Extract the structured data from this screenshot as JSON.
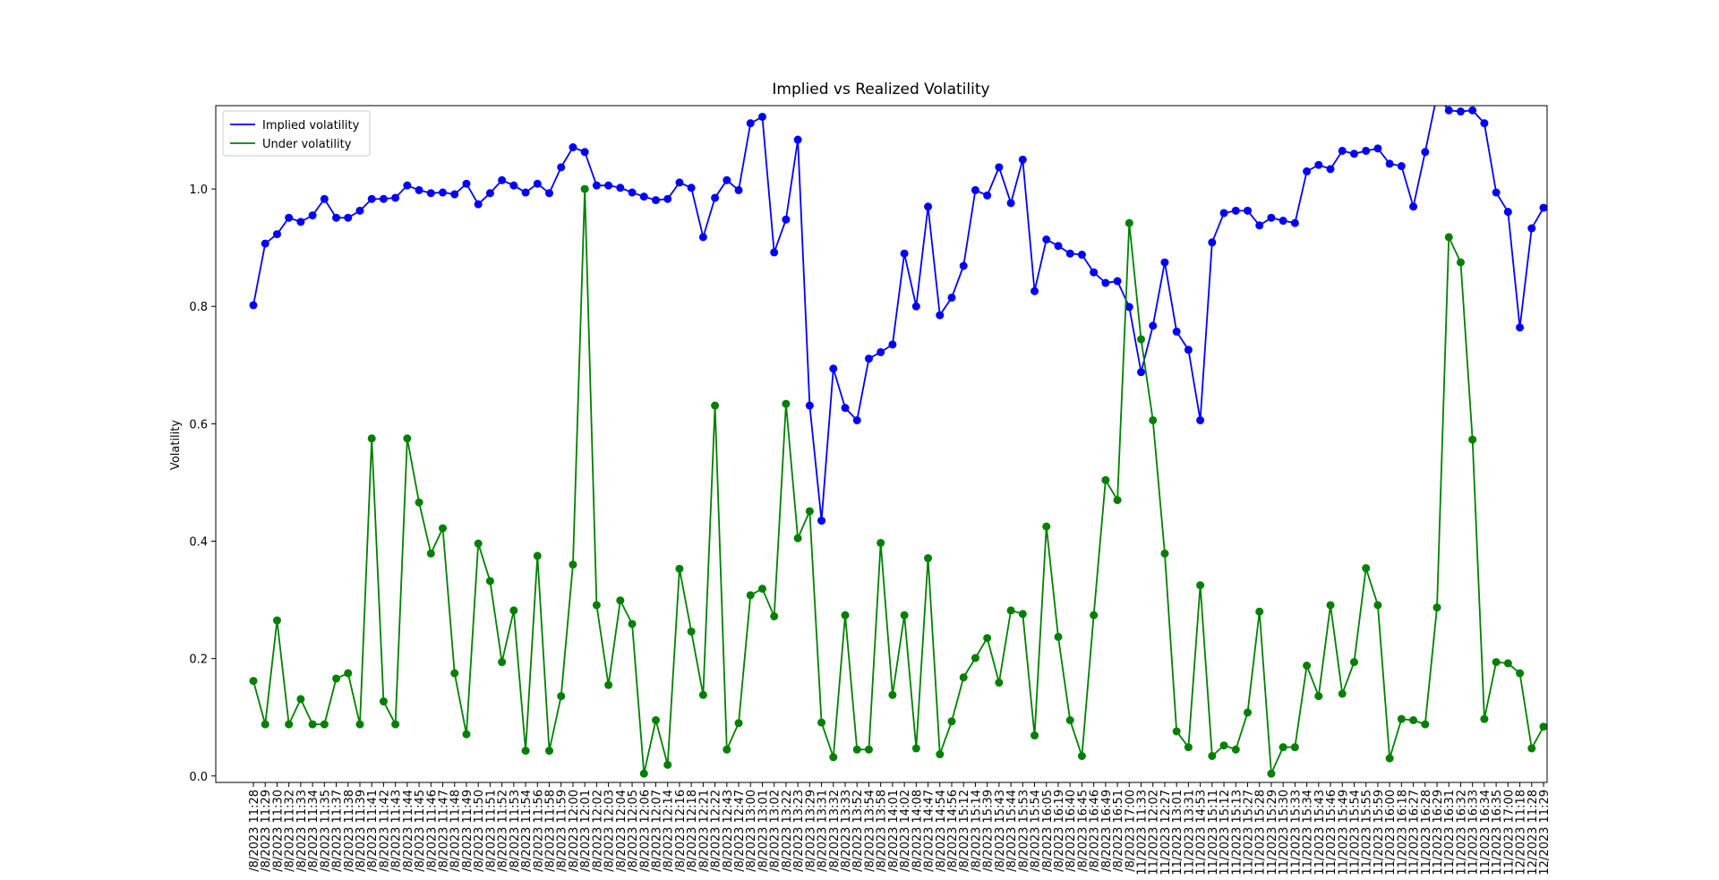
{
  "chart_data": {
    "type": "line",
    "title": "Implied vs Realized Volatility",
    "ylabel": "Volatility",
    "ylim": [
      -0.011,
      1.142
    ],
    "yticks": [
      {
        "value": 0,
        "label": "0.0"
      },
      0.2,
      0.4,
      0.6,
      0.8,
      {
        "value": 1,
        "label": "1.0"
      }
    ],
    "legend": "upper left",
    "markers": true,
    "categories": [
      "/8/2023 11:28",
      "/8/2023 11:29",
      "/8/2023 11:30",
      "/8/2023 11:32",
      "/8/2023 11:33",
      "/8/2023 11:34",
      "/8/2023 11:35",
      "/8/2023 11:37",
      "/8/2023 11:38",
      "/8/2023 11:39",
      "/8/2023 11:41",
      "/8/2023 11:42",
      "/8/2023 11:43",
      "/8/2023 11:44",
      "/8/2023 11:45",
      "/8/2023 11:46",
      "/8/2023 11:47",
      "/8/2023 11:48",
      "/8/2023 11:49",
      "/8/2023 11:50",
      "/8/2023 11:51",
      "/8/2023 11:52",
      "/8/2023 11:53",
      "/8/2023 11:54",
      "/8/2023 11:56",
      "/8/2023 11:58",
      "/8/2023 11:59",
      "/8/2023 12:00",
      "/8/2023 12:01",
      "/8/2023 12:02",
      "/8/2023 12:03",
      "/8/2023 12:04",
      "/8/2023 12:05",
      "/8/2023 12:06",
      "/8/2023 12:07",
      "/8/2023 12:14",
      "/8/2023 12:16",
      "/8/2023 12:18",
      "/8/2023 12:21",
      "/8/2023 12:22",
      "/8/2023 12:43",
      "/8/2023 12:47",
      "/8/2023 13:00",
      "/8/2023 13:01",
      "/8/2023 13:02",
      "/8/2023 13:22",
      "/8/2023 13:23",
      "/8/2023 13:29",
      "/8/2023 13:31",
      "/8/2023 13:32",
      "/8/2023 13:33",
      "/8/2023 13:52",
      "/8/2023 13:54",
      "/8/2023 13:58",
      "/8/2023 14:01",
      "/8/2023 14:02",
      "/8/2023 14:08",
      "/8/2023 14:47",
      "/8/2023 14:54",
      "/8/2023 14:56",
      "/8/2023 15:12",
      "/8/2023 15:14",
      "/8/2023 15:39",
      "/8/2023 15:43",
      "/8/2023 15:44",
      "/8/2023 15:53",
      "/8/2023 15:54",
      "/8/2023 16:05",
      "/8/2023 16:19",
      "/8/2023 16:40",
      "/8/2023 16:45",
      "/8/2023 16:46",
      "/8/2023 16:49",
      "/8/2023 16:51",
      "/8/2023 17:00",
      "11/2023 11:33",
      "11/2023 12:02",
      "11/2023 12:27",
      "11/2023 13:01",
      "11/2023 13:31",
      "11/2023 14:53",
      "11/2023 15:11",
      "11/2023 15:12",
      "11/2023 15:13",
      "11/2023 15:27",
      "11/2023 15:28",
      "11/2023 15:29",
      "11/2023 15:30",
      "11/2023 15:33",
      "11/2023 15:34",
      "11/2023 15:43",
      "11/2023 15:46",
      "11/2023 15:49",
      "11/2023 15:54",
      "11/2023 15:55",
      "11/2023 15:59",
      "11/2023 16:00",
      "11/2023 16:18",
      "11/2023 16:27",
      "11/2023 16:28",
      "11/2023 16:29",
      "11/2023 16:31",
      "11/2023 16:32",
      "11/2023 16:33",
      "11/2023 16:34",
      "11/2023 16:35",
      "11/2023 17:00",
      "12/2023 11:18",
      "12/2023 11:28",
      "12/2023 11:29"
    ],
    "series": [
      {
        "name": "Implied volatility",
        "color": "blue",
        "values": [
          0.802,
          0.907,
          0.923,
          0.951,
          0.944,
          0.955,
          0.983,
          0.951,
          0.951,
          0.963,
          0.983,
          0.983,
          0.985,
          1.006,
          0.998,
          0.993,
          0.994,
          0.991,
          1.009,
          0.974,
          0.993,
          1.015,
          1.006,
          0.994,
          1.009,
          0.993,
          1.037,
          1.071,
          1.063,
          1.006,
          1.006,
          1.002,
          0.994,
          0.987,
          0.981,
          0.983,
          1.011,
          1.002,
          0.918,
          0.985,
          1.015,
          0.998,
          1.112,
          1.123,
          0.892,
          0.948,
          1.084,
          0.631,
          0.435,
          0.694,
          0.627,
          0.606,
          0.711,
          0.722,
          0.735,
          0.89,
          0.8,
          0.97,
          0.785,
          0.815,
          0.869,
          0.998,
          0.989,
          1.037,
          0.976,
          1.05,
          0.826,
          0.914,
          0.903,
          0.89,
          0.888,
          0.858,
          0.84,
          0.843,
          0.799,
          0.688,
          0.767,
          0.875,
          0.757,
          0.726,
          0.606,
          0.909,
          0.959,
          0.963,
          0.963,
          0.938,
          0.951,
          0.946,
          0.942,
          1.03,
          1.041,
          1.034,
          1.065,
          1.06,
          1.065,
          1.069,
          1.043,
          1.039,
          0.97,
          1.063,
          1.16,
          1.134,
          1.132,
          1.134,
          1.112,
          0.994,
          0.961,
          0.764,
          0.933,
          0.968
        ]
      },
      {
        "name": "Under volatility",
        "color": "green",
        "values": [
          0.162,
          0.088,
          0.265,
          0.088,
          0.131,
          0.088,
          0.088,
          0.166,
          0.175,
          0.088,
          0.575,
          0.127,
          0.088,
          0.575,
          0.466,
          0.379,
          0.422,
          0.175,
          0.071,
          0.396,
          0.332,
          0.194,
          0.282,
          0.043,
          0.375,
          0.043,
          0.136,
          0.36,
          1.0,
          0.291,
          0.155,
          0.299,
          0.259,
          0.004,
          0.095,
          0.019,
          0.353,
          0.246,
          0.138,
          0.631,
          0.045,
          0.09,
          0.308,
          0.319,
          0.272,
          0.634,
          0.405,
          0.451,
          0.091,
          0.032,
          0.274,
          0.045,
          0.045,
          0.397,
          0.138,
          0.274,
          0.047,
          0.371,
          0.037,
          0.093,
          0.168,
          0.201,
          0.235,
          0.159,
          0.282,
          0.276,
          0.069,
          0.425,
          0.237,
          0.095,
          0.034,
          0.274,
          0.504,
          0.47,
          0.942,
          0.744,
          0.606,
          0.379,
          0.076,
          0.049,
          0.325,
          0.034,
          0.052,
          0.045,
          0.108,
          0.28,
          0.004,
          0.049,
          0.049,
          0.188,
          0.136,
          0.291,
          0.14,
          0.194,
          0.354,
          0.291,
          0.03,
          0.097,
          0.095,
          0.088,
          0.287,
          0.918,
          0.875,
          0.573,
          0.097,
          0.194,
          0.192,
          0.175,
          0.047,
          0.084
        ]
      }
    ]
  }
}
